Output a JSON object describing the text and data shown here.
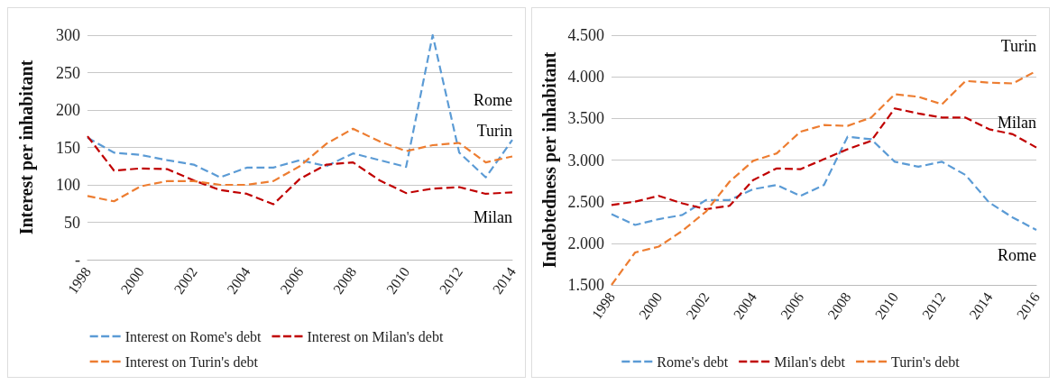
{
  "chart_data": [
    {
      "type": "line",
      "ylabel": "Interest per inhabitant",
      "x": [
        1998,
        1999,
        2000,
        2001,
        2002,
        2003,
        2004,
        2005,
        2006,
        2007,
        2008,
        2009,
        2010,
        2011,
        2012,
        2013,
        2014
      ],
      "series": [
        {
          "name": "Interest on Rome's debt",
          "color": "#5b9bd5",
          "values": [
            163,
            143,
            140,
            133,
            127,
            110,
            123,
            123,
            133,
            125,
            142,
            133,
            124,
            300,
            143,
            110,
            160
          ]
        },
        {
          "name": "Interest on Milan's debt",
          "color": "#c00000",
          "values": [
            165,
            119,
            122,
            121,
            106,
            93,
            88,
            74,
            108,
            127,
            130,
            106,
            89,
            95,
            97,
            88,
            90
          ]
        },
        {
          "name": "Interest on Turin's debt",
          "color": "#ed7d31",
          "values": [
            85,
            78,
            98,
            105,
            105,
            100,
            100,
            105,
            125,
            155,
            175,
            158,
            145,
            153,
            156,
            130,
            138
          ]
        }
      ],
      "xlim": [
        1998,
        2014
      ],
      "xticks": [
        1998,
        2000,
        2002,
        2004,
        2006,
        2008,
        2010,
        2012,
        2014
      ],
      "ylim": [
        0,
        300
      ],
      "yticks": [
        {
          "value": 0,
          "label": "-"
        },
        50,
        100,
        150,
        200,
        250,
        300
      ],
      "annotations": [
        "Rome",
        "Milan",
        "Turin"
      ],
      "grid": "y",
      "legend": "bottom",
      "marker": "none",
      "line_style": "dashed"
    },
    {
      "type": "line",
      "ylabel": "Indebtedness per inhabitant",
      "x": [
        1998,
        1999,
        2000,
        2001,
        2002,
        2003,
        2004,
        2005,
        2006,
        2007,
        2008,
        2009,
        2010,
        2011,
        2012,
        2013,
        2014,
        2015,
        2016
      ],
      "series": [
        {
          "name": "Rome's debt",
          "color": "#5b9bd5",
          "values": [
            2350,
            2220,
            2290,
            2340,
            2520,
            2520,
            2650,
            2700,
            2570,
            2700,
            3280,
            3250,
            2980,
            2920,
            2980,
            2820,
            2490,
            2310,
            2160
          ]
        },
        {
          "name": "Milan's debt",
          "color": "#c00000",
          "values": [
            2460,
            2500,
            2570,
            2480,
            2410,
            2450,
            2760,
            2900,
            2890,
            3010,
            3130,
            3230,
            3620,
            3560,
            3510,
            3510,
            3370,
            3310,
            3150
          ]
        },
        {
          "name": "Turin's debt",
          "color": "#ed7d31",
          "values": [
            1500,
            1890,
            1960,
            2150,
            2380,
            2740,
            2990,
            3080,
            3340,
            3420,
            3410,
            3510,
            3790,
            3760,
            3670,
            3950,
            3930,
            3920,
            4070
          ]
        }
      ],
      "xlim": [
        1998,
        2016
      ],
      "xticks": [
        1998,
        2000,
        2002,
        2004,
        2006,
        2008,
        2010,
        2012,
        2014,
        2016
      ],
      "ylim": [
        1500,
        4500
      ],
      "yticks": [
        {
          "value": 1500,
          "label": "1.500"
        },
        {
          "value": 2000,
          "label": "2.000"
        },
        {
          "value": 2500,
          "label": "2.500"
        },
        {
          "value": 3000,
          "label": "3.000"
        },
        {
          "value": 3500,
          "label": "3.500"
        },
        {
          "value": 4000,
          "label": "4.000"
        },
        {
          "value": 4500,
          "label": "4.500"
        }
      ],
      "annotations": [
        "Rome",
        "Milan",
        "Turin"
      ],
      "grid": "y",
      "legend": "bottom",
      "marker": "none",
      "line_style": "dashed"
    }
  ]
}
